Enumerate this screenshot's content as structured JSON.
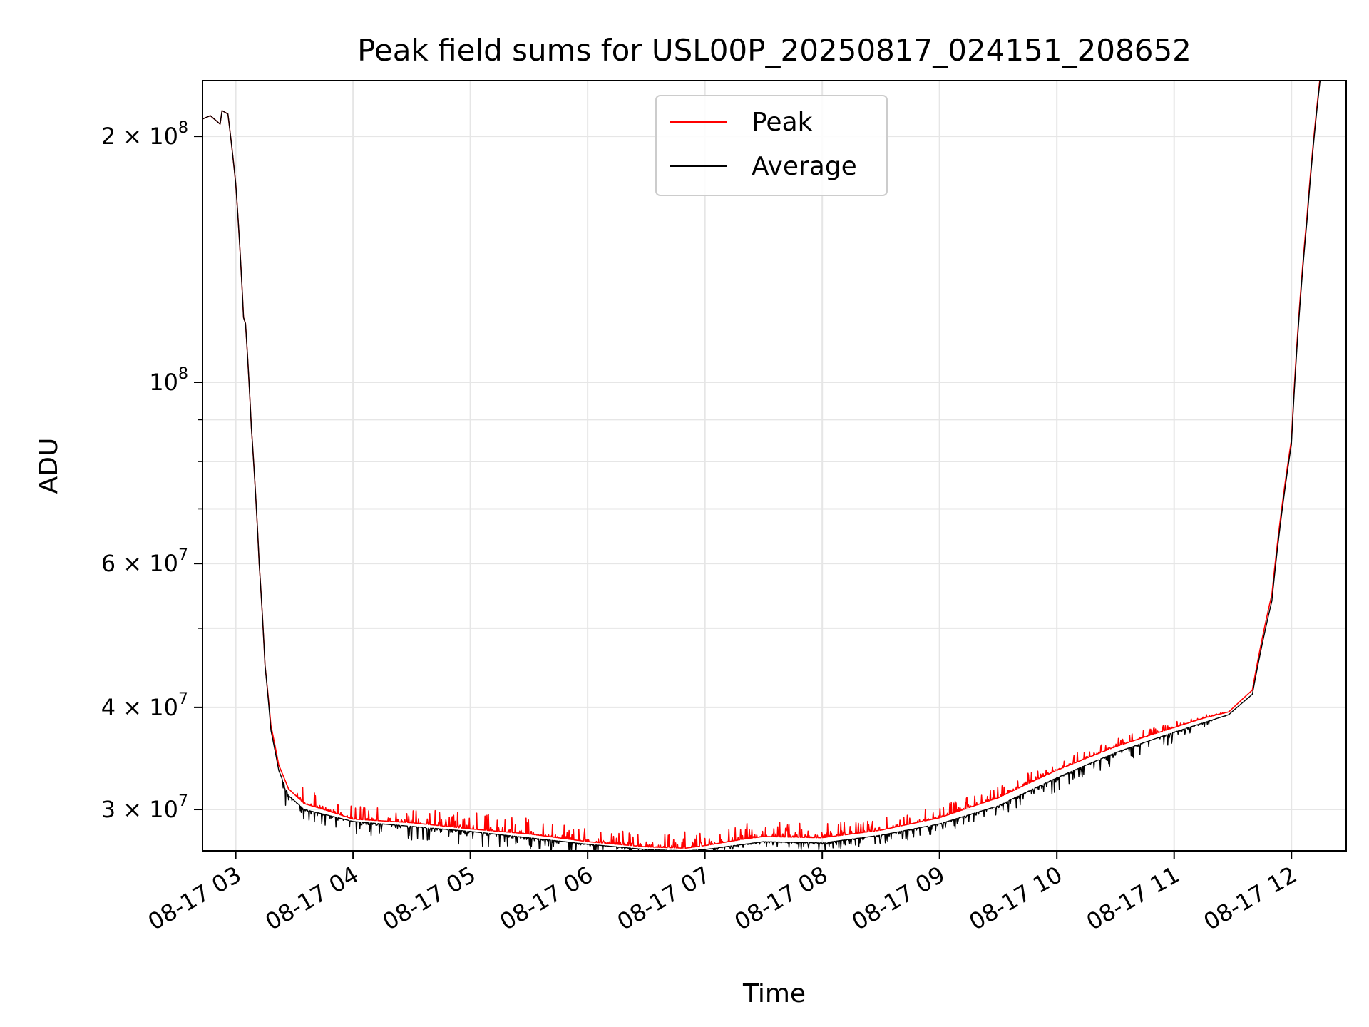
{
  "chart_data": {
    "type": "line",
    "title": "Peak field sums for USL00P_20250817_024151_208652",
    "xlabel": "Time",
    "ylabel": "ADU",
    "yscale": "log",
    "xlim": [
      "2025-08-17 02:43",
      "2025-08-17 12:28"
    ],
    "ylim": [
      26700000,
      234000000
    ],
    "grid": true,
    "legend_position": "top-center",
    "x_ticks": [
      {
        "t": "2025-08-17 03:00",
        "label": "08-17 03"
      },
      {
        "t": "2025-08-17 04:00",
        "label": "08-17 04"
      },
      {
        "t": "2025-08-17 05:00",
        "label": "08-17 05"
      },
      {
        "t": "2025-08-17 06:00",
        "label": "08-17 06"
      },
      {
        "t": "2025-08-17 07:00",
        "label": "08-17 07"
      },
      {
        "t": "2025-08-17 08:00",
        "label": "08-17 08"
      },
      {
        "t": "2025-08-17 09:00",
        "label": "08-17 09"
      },
      {
        "t": "2025-08-17 10:00",
        "label": "08-17 10"
      },
      {
        "t": "2025-08-17 11:00",
        "label": "08-17 11"
      },
      {
        "t": "2025-08-17 12:00",
        "label": "08-17 12"
      }
    ],
    "y_ticks_major": [
      {
        "value": 30000000,
        "mant": "3",
        "exp": "7"
      },
      {
        "value": 40000000,
        "mant": "4",
        "exp": "7"
      },
      {
        "value": 60000000,
        "mant": "6",
        "exp": "7"
      },
      {
        "value": 100000000,
        "mant": "",
        "exp": "8"
      },
      {
        "value": 200000000,
        "mant": "2",
        "exp": "8"
      }
    ],
    "y_ticks_minor": [
      50000000,
      70000000,
      80000000,
      90000000
    ],
    "series": [
      {
        "name": "Peak",
        "color": "#ff0000",
        "noise": "up",
        "x": [
          "2025-08-17 02:43",
          "2025-08-17 02:47",
          "2025-08-17 02:52",
          "2025-08-17 02:53",
          "2025-08-17 02:56",
          "2025-08-17 03:00",
          "2025-08-17 03:04",
          "2025-08-17 03:05",
          "2025-08-17 03:08",
          "2025-08-17 03:12",
          "2025-08-17 03:15",
          "2025-08-17 03:18",
          "2025-08-17 03:22",
          "2025-08-17 03:27",
          "2025-08-17 03:35",
          "2025-08-17 03:45",
          "2025-08-17 04:00",
          "2025-08-17 04:30",
          "2025-08-17 05:00",
          "2025-08-17 05:30",
          "2025-08-17 06:00",
          "2025-08-17 06:30",
          "2025-08-17 06:50",
          "2025-08-17 07:00",
          "2025-08-17 07:20",
          "2025-08-17 07:30",
          "2025-08-17 08:00",
          "2025-08-17 08:30",
          "2025-08-17 09:00",
          "2025-08-17 09:30",
          "2025-08-17 10:00",
          "2025-08-17 10:30",
          "2025-08-17 11:00",
          "2025-08-17 11:15",
          "2025-08-17 11:28",
          "2025-08-17 11:40",
          "2025-08-17 11:50",
          "2025-08-17 12:00",
          "2025-08-17 12:08",
          "2025-08-17 12:15"
        ],
        "y": [
          210000000,
          212000000,
          207000000,
          215000000,
          213000000,
          175000000,
          120000000,
          118000000,
          88000000,
          60000000,
          45000000,
          38000000,
          34000000,
          31800000,
          30500000,
          30000000,
          29200000,
          28900000,
          28400000,
          28000000,
          27400000,
          27000000,
          26900000,
          27100000,
          27600000,
          27800000,
          27700000,
          28300000,
          29300000,
          31000000,
          33500000,
          35800000,
          37800000,
          38800000,
          39500000,
          42000000,
          55000000,
          85000000,
          160000000,
          240000000
        ],
        "noise_points": [
          {
            "x": "2025-08-17 03:30",
            "amp": 0.06
          },
          {
            "x": "2025-08-17 04:00",
            "amp": 0.04
          },
          {
            "x": "2025-08-17 05:00",
            "amp": 0.05
          },
          {
            "x": "2025-08-17 06:00",
            "amp": 0.04
          },
          {
            "x": "2025-08-17 07:00",
            "amp": 0.05
          },
          {
            "x": "2025-08-17 08:00",
            "amp": 0.04
          },
          {
            "x": "2025-08-17 09:00",
            "amp": 0.035
          },
          {
            "x": "2025-08-17 10:00",
            "amp": 0.03
          },
          {
            "x": "2025-08-17 11:00",
            "amp": 0.02
          },
          {
            "x": "2025-08-17 11:28",
            "amp": 0.0
          }
        ]
      },
      {
        "name": "Average",
        "color": "#000000",
        "noise": "down",
        "x": [
          "2025-08-17 02:43",
          "2025-08-17 02:47",
          "2025-08-17 02:52",
          "2025-08-17 02:53",
          "2025-08-17 02:56",
          "2025-08-17 03:00",
          "2025-08-17 03:04",
          "2025-08-17 03:05",
          "2025-08-17 03:08",
          "2025-08-17 03:12",
          "2025-08-17 03:15",
          "2025-08-17 03:18",
          "2025-08-17 03:22",
          "2025-08-17 03:27",
          "2025-08-17 03:35",
          "2025-08-17 03:45",
          "2025-08-17 04:00",
          "2025-08-17 04:30",
          "2025-08-17 05:00",
          "2025-08-17 05:30",
          "2025-08-17 06:00",
          "2025-08-17 06:30",
          "2025-08-17 06:50",
          "2025-08-17 07:00",
          "2025-08-17 07:20",
          "2025-08-17 07:30",
          "2025-08-17 08:00",
          "2025-08-17 08:30",
          "2025-08-17 09:00",
          "2025-08-17 09:30",
          "2025-08-17 10:00",
          "2025-08-17 10:30",
          "2025-08-17 11:00",
          "2025-08-17 11:15",
          "2025-08-17 11:28",
          "2025-08-17 11:40",
          "2025-08-17 11:50",
          "2025-08-17 12:00",
          "2025-08-17 12:08",
          "2025-08-17 12:15"
        ],
        "y": [
          210000000,
          212000000,
          207000000,
          215000000,
          213000000,
          175000000,
          120000000,
          118000000,
          88000000,
          60000000,
          45000000,
          37500000,
          33500000,
          31200000,
          30000000,
          29600000,
          29000000,
          28600000,
          28200000,
          27700000,
          27200000,
          26800000,
          26700000,
          26800000,
          27200000,
          27400000,
          27300000,
          27900000,
          28800000,
          30300000,
          32800000,
          35200000,
          37300000,
          38300000,
          39200000,
          41500000,
          54000000,
          84000000,
          158000000,
          238000000
        ],
        "noise_points": [
          {
            "x": "2025-08-17 03:22",
            "amp": 0.05
          },
          {
            "x": "2025-08-17 04:00",
            "amp": 0.035
          },
          {
            "x": "2025-08-17 05:00",
            "amp": 0.04
          },
          {
            "x": "2025-08-17 06:00",
            "amp": 0.03
          },
          {
            "x": "2025-08-17 07:00",
            "amp": 0.01
          },
          {
            "x": "2025-08-17 08:00",
            "amp": 0.025
          },
          {
            "x": "2025-08-17 09:00",
            "amp": 0.03
          },
          {
            "x": "2025-08-17 10:00",
            "amp": 0.04
          },
          {
            "x": "2025-08-17 11:00",
            "amp": 0.03
          },
          {
            "x": "2025-08-17 11:28",
            "amp": 0.0
          }
        ]
      }
    ]
  }
}
